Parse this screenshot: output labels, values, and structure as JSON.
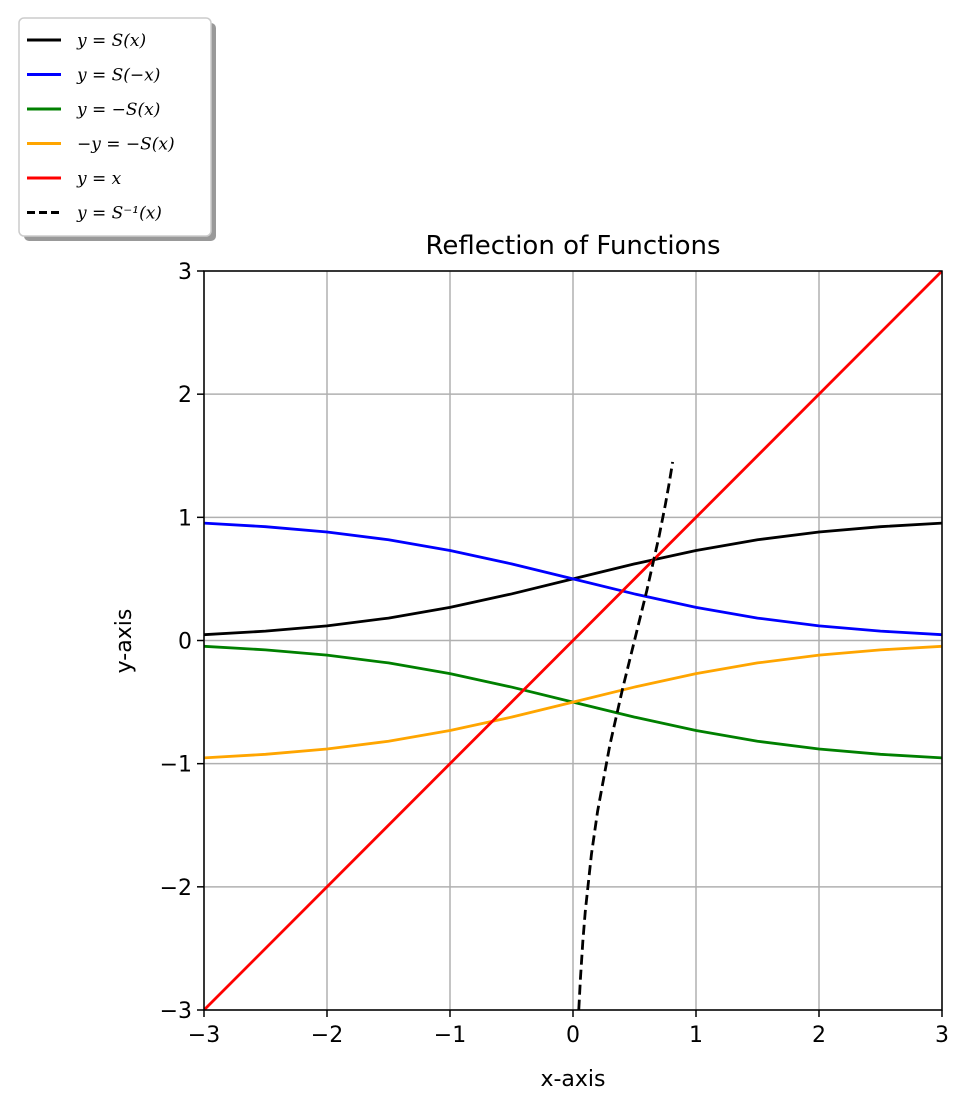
{
  "chart_data": {
    "type": "line",
    "title": "Reflection of Functions",
    "xlabel": "x-axis",
    "ylabel": "y-axis",
    "xlim": [
      -3,
      3
    ],
    "ylim": [
      -3,
      3
    ],
    "grid": true,
    "legend_placement": "upper-left, outside plot",
    "x_ticks": [
      -3,
      -2,
      -1,
      0,
      1,
      2,
      3
    ],
    "y_ticks": [
      -3,
      -2,
      -1,
      0,
      1,
      2,
      3
    ],
    "x_tick_labels": [
      "−3",
      "−2",
      "−1",
      "0",
      "1",
      "2",
      "3"
    ],
    "y_tick_labels": [
      "−3",
      "−2",
      "−1",
      "0",
      "1",
      "2",
      "3"
    ],
    "series": [
      {
        "name": "y = S(x)",
        "color": "#000000",
        "style": "solid",
        "x": [
          -3,
          -2.5,
          -2,
          -1.5,
          -1,
          -0.5,
          0,
          0.5,
          1,
          1.5,
          2,
          2.5,
          3
        ],
        "y": [
          0.047,
          0.076,
          0.119,
          0.182,
          0.269,
          0.378,
          0.5,
          0.622,
          0.731,
          0.818,
          0.881,
          0.924,
          0.953
        ]
      },
      {
        "name": "y = S(−x)",
        "color": "#0000ff",
        "style": "solid",
        "x": [
          -3,
          -2.5,
          -2,
          -1.5,
          -1,
          -0.5,
          0,
          0.5,
          1,
          1.5,
          2,
          2.5,
          3
        ],
        "y": [
          0.953,
          0.924,
          0.881,
          0.818,
          0.731,
          0.622,
          0.5,
          0.378,
          0.269,
          0.182,
          0.119,
          0.076,
          0.047
        ]
      },
      {
        "name": "y = −S(x)",
        "color": "#008000",
        "style": "solid",
        "x": [
          -3,
          -2.5,
          -2,
          -1.5,
          -1,
          -0.5,
          0,
          0.5,
          1,
          1.5,
          2,
          2.5,
          3
        ],
        "y": [
          -0.047,
          -0.076,
          -0.119,
          -0.182,
          -0.269,
          -0.378,
          -0.5,
          -0.622,
          -0.731,
          -0.818,
          -0.881,
          -0.924,
          -0.953
        ]
      },
      {
        "name": "−y = −S(x)",
        "color": "#ffa500",
        "style": "solid",
        "x": [
          -3,
          -2.5,
          -2,
          -1.5,
          -1,
          -0.5,
          0,
          0.5,
          1,
          1.5,
          2,
          2.5,
          3
        ],
        "y": [
          -0.953,
          -0.924,
          -0.881,
          -0.818,
          -0.731,
          -0.622,
          -0.5,
          -0.378,
          -0.269,
          -0.182,
          -0.119,
          -0.076,
          -0.047
        ]
      },
      {
        "name": "y = x",
        "color": "#ff0000",
        "style": "solid",
        "x": [
          -3,
          3
        ],
        "y": [
          -3,
          3
        ]
      },
      {
        "name": "y = S⁻¹(x)",
        "color": "#000000",
        "style": "dashed",
        "x": [
          0.047,
          0.06,
          0.08,
          0.1,
          0.15,
          0.2,
          0.3,
          0.4,
          0.5,
          0.6,
          0.7,
          0.75,
          0.78,
          0.8,
          0.81
        ],
        "y": [
          -2.997,
          -2.752,
          -2.442,
          -2.197,
          -1.735,
          -1.386,
          -0.847,
          -0.405,
          0.0,
          0.405,
          0.847,
          1.099,
          1.266,
          1.386,
          1.45
        ]
      }
    ]
  }
}
